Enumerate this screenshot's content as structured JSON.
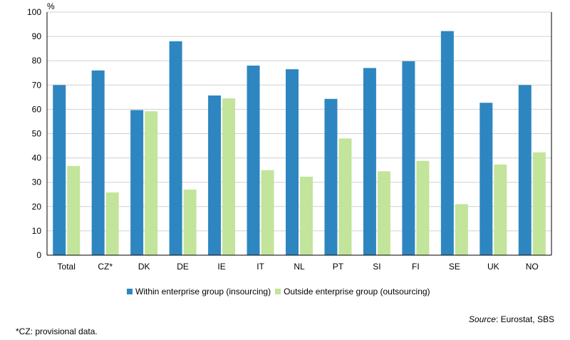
{
  "chart_data": {
    "type": "bar",
    "unit_label": "%",
    "categories": [
      "Total",
      "CZ*",
      "DK",
      "DE",
      "IE",
      "IT",
      "NL",
      "PT",
      "SI",
      "FI",
      "SE",
      "UK",
      "NO"
    ],
    "series": [
      {
        "name": "Within enterprise group (insourcing)",
        "color": "#2e86c1",
        "values": [
          70,
          76,
          59.7,
          88,
          65.7,
          78,
          76.5,
          64.3,
          77,
          79.8,
          92.2,
          62.7,
          70
        ]
      },
      {
        "name": "Outside enterprise group (outsourcing)",
        "color": "#c3e49b",
        "values": [
          36.7,
          25.8,
          59.2,
          27,
          64.5,
          35,
          32.3,
          48,
          34.5,
          38.8,
          21,
          37.3,
          42.3
        ]
      }
    ],
    "ylim": [
      0,
      100
    ],
    "yticks": [
      0,
      10,
      20,
      30,
      40,
      50,
      60,
      70,
      80,
      90,
      100
    ],
    "grid": true,
    "legend_position": "bottom"
  },
  "source": {
    "label": "Source",
    "text": ": Eurostat, SBS"
  },
  "footnote": "*CZ: provisional data."
}
